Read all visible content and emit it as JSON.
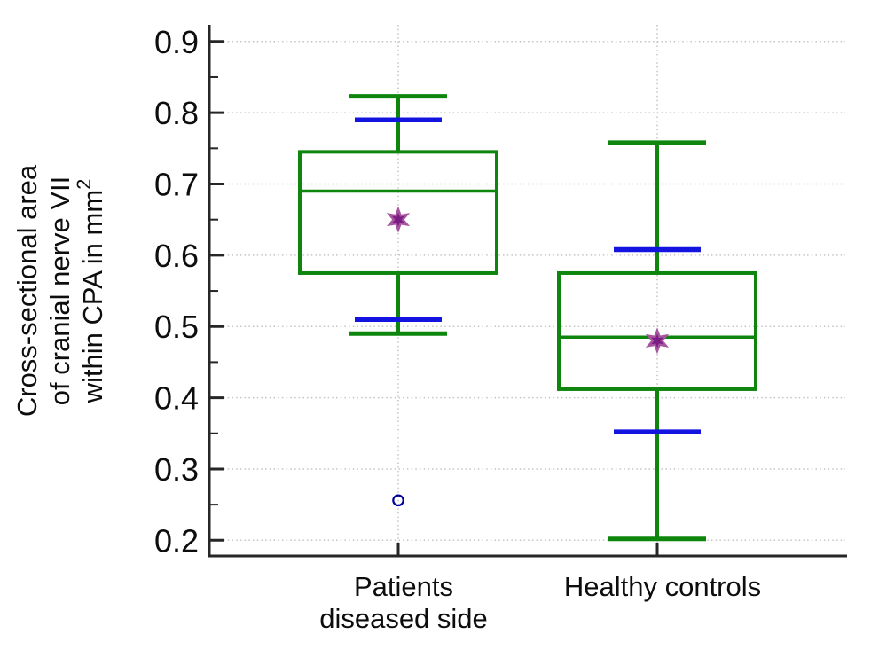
{
  "figure": {
    "title": "",
    "background": "#ffffff"
  },
  "chart_data": {
    "type": "boxplot",
    "ylabel_lines": [
      "Cross-sectional area",
      "of cranial nerve VII",
      "within CPA in mm"
    ],
    "ylabel_superscript": "2",
    "ylim": [
      0.2,
      0.9
    ],
    "yticks": [
      0.9,
      0.8,
      0.7,
      0.6,
      0.5,
      0.4,
      0.3,
      0.2
    ],
    "ytick_labels": [
      "0.9",
      "0.8",
      "0.7",
      "0.6",
      "0.5",
      "0.4",
      "0.3",
      "0.2"
    ],
    "minor_yticks": [
      0.25,
      0.35,
      0.45,
      0.55,
      0.65,
      0.75,
      0.85
    ],
    "grid": "dotted horizontal lines at major y ticks; dotted vertical line at each category tick",
    "legend": "none",
    "groups": [
      {
        "label_lines": [
          "Patients",
          "diseased side"
        ],
        "whisker_high": 0.823,
        "upper_blue_marker": 0.79,
        "q3": 0.745,
        "median": 0.69,
        "mean": 0.65,
        "q1": 0.575,
        "lower_blue_marker": 0.51,
        "whisker_low": 0.49,
        "outliers": [
          0.256
        ]
      },
      {
        "label_lines": [
          "Healthy controls"
        ],
        "whisker_high": 0.758,
        "upper_blue_marker": 0.608,
        "q3": 0.575,
        "median": 0.485,
        "mean": 0.48,
        "q1": 0.412,
        "lower_blue_marker": 0.352,
        "whisker_low": 0.202,
        "outliers": []
      }
    ],
    "colors": {
      "box_green": "#0e860e",
      "blue_marker": "#1414e0",
      "mean_star_fill": "#7c1d85",
      "mean_star_edge": "#a855a0",
      "outlier_blue": "#0000a0",
      "axis": "#262626",
      "grid": "#c4c4c4",
      "text": "#0d0d0d"
    }
  }
}
